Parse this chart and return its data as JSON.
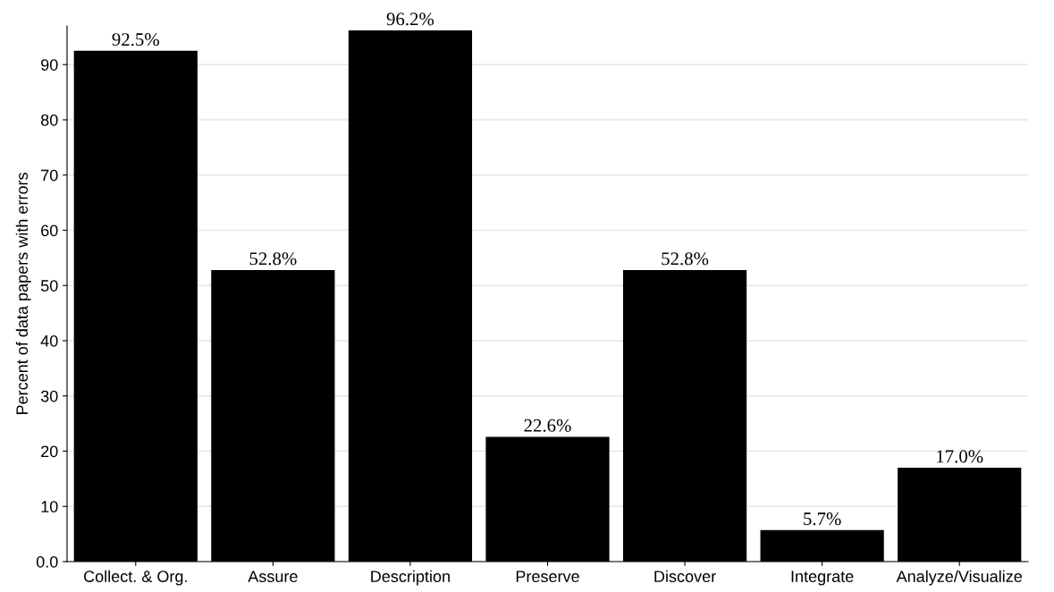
{
  "chart_data": {
    "type": "bar",
    "ylabel": "Percent of data papers with errors",
    "categories": [
      "Collect. & Org.",
      "Assure",
      "Description",
      "Preserve",
      "Discover",
      "Integrate",
      "Analyze/Visualize"
    ],
    "values": [
      92.5,
      52.8,
      96.2,
      22.6,
      52.8,
      5.7,
      17.0
    ],
    "value_labels": [
      "92.5%",
      "52.8%",
      "96.2%",
      "22.6%",
      "52.8%",
      "5.7%",
      "17.0%"
    ],
    "color": "#000000",
    "ylim": [
      0,
      97
    ],
    "yticks": [
      {
        "value": 0,
        "label": "0.0"
      },
      10,
      20,
      30,
      40,
      50,
      60,
      70,
      80,
      90
    ],
    "grid": "y"
  }
}
